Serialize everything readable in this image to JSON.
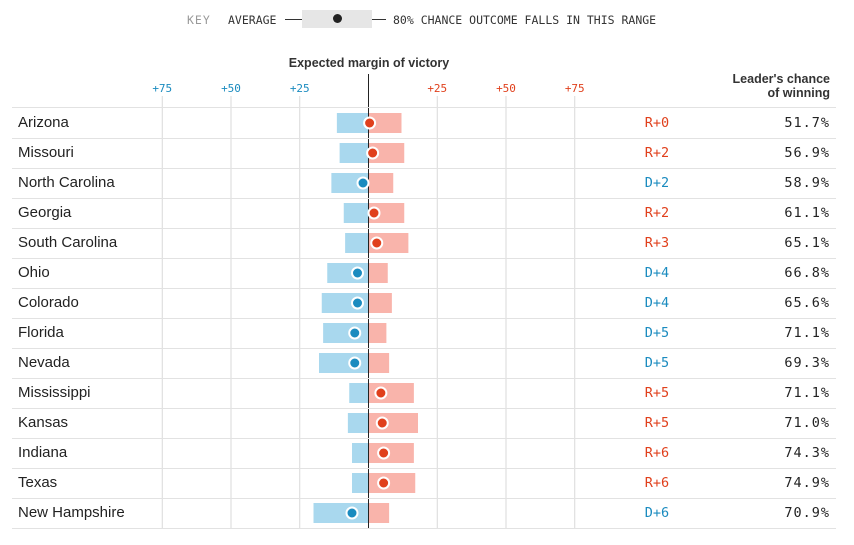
{
  "key": {
    "label": "KEY",
    "average_label": "AVERAGE",
    "range_label": "80% CHANCE OUTCOME FALLS IN THIS RANGE"
  },
  "axis_title": "Expected margin of victory",
  "column_title_line1": "Leader's chance",
  "column_title_line2": "of winning",
  "colors": {
    "dem_band": "#a9d8ee",
    "dem_dot": "#1a8bbf",
    "rep_band": "#f9b4ab",
    "rep_dot": "#e0401c",
    "grid": "#d9d9d9",
    "zero_line": "#222222"
  },
  "ticks": [
    {
      "label": "+75",
      "party": "D",
      "value": -75
    },
    {
      "label": "+50",
      "party": "D",
      "value": -50
    },
    {
      "label": "+25",
      "party": "D",
      "value": -25
    },
    {
      "label": "+25",
      "party": "R",
      "value": 25
    },
    {
      "label": "+50",
      "party": "R",
      "value": 50
    },
    {
      "label": "+75",
      "party": "R",
      "value": 75
    }
  ],
  "chart_data": {
    "type": "range-dot",
    "title": "Expected margin of victory",
    "xlim": [
      -75,
      75
    ],
    "sign_convention": "negative = Democratic margin, positive = Republican margin",
    "rows": [
      {
        "state": "Arizona",
        "avg": 0.4,
        "low": -11.5,
        "high": 12,
        "margin_label": "R+0",
        "party": "R",
        "chance": "51.7%"
      },
      {
        "state": "Missouri",
        "avg": 1.5,
        "low": -10.5,
        "high": 13,
        "margin_label": "R+2",
        "party": "R",
        "chance": "56.9%"
      },
      {
        "state": "North Carolina",
        "avg": -2,
        "low": -13.5,
        "high": 9,
        "margin_label": "D+2",
        "party": "D",
        "chance": "58.9%"
      },
      {
        "state": "Georgia",
        "avg": 2,
        "low": -9,
        "high": 13,
        "margin_label": "R+2",
        "party": "R",
        "chance": "61.1%"
      },
      {
        "state": "South Carolina",
        "avg": 3,
        "low": -8.5,
        "high": 14.5,
        "margin_label": "R+3",
        "party": "R",
        "chance": "65.1%"
      },
      {
        "state": "Ohio",
        "avg": -4,
        "low": -15,
        "high": 7,
        "margin_label": "D+4",
        "party": "D",
        "chance": "66.8%"
      },
      {
        "state": "Colorado",
        "avg": -4,
        "low": -17,
        "high": 8.5,
        "margin_label": "D+4",
        "party": "D",
        "chance": "65.6%"
      },
      {
        "state": "Florida",
        "avg": -5,
        "low": -16.5,
        "high": 6.5,
        "margin_label": "D+5",
        "party": "D",
        "chance": "71.1%"
      },
      {
        "state": "Nevada",
        "avg": -5,
        "low": -18,
        "high": 7.5,
        "margin_label": "D+5",
        "party": "D",
        "chance": "69.3%"
      },
      {
        "state": "Mississippi",
        "avg": 4.5,
        "low": -7,
        "high": 16.5,
        "margin_label": "R+5",
        "party": "R",
        "chance": "71.1%"
      },
      {
        "state": "Kansas",
        "avg": 5,
        "low": -7.5,
        "high": 18,
        "margin_label": "R+5",
        "party": "R",
        "chance": "71.0%"
      },
      {
        "state": "Indiana",
        "avg": 5.5,
        "low": -6,
        "high": 16.5,
        "margin_label": "R+6",
        "party": "R",
        "chance": "74.3%"
      },
      {
        "state": "Texas",
        "avg": 5.5,
        "low": -6,
        "high": 17,
        "margin_label": "R+6",
        "party": "R",
        "chance": "74.9%"
      },
      {
        "state": "New Hampshire",
        "avg": -6,
        "low": -20,
        "high": 7.5,
        "margin_label": "D+6",
        "party": "D",
        "chance": "70.9%"
      }
    ]
  }
}
